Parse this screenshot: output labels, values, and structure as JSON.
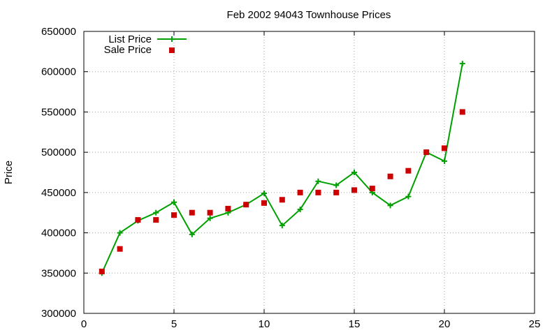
{
  "chart_data": {
    "type": "line",
    "title": "Feb 2002 94043 Townhouse Prices",
    "xlabel": "",
    "ylabel": "Price",
    "xlim": [
      0,
      25
    ],
    "ylim": [
      300000,
      650000
    ],
    "xticks": [
      0,
      5,
      10,
      15,
      20,
      25
    ],
    "yticks": [
      300000,
      350000,
      400000,
      450000,
      500000,
      550000,
      600000,
      650000
    ],
    "grid": true,
    "legend_position": "top-left",
    "series": [
      {
        "name": "List Price",
        "style": "line+cross",
        "color": "#00a000",
        "x": [
          1,
          2,
          3,
          4,
          5,
          6,
          7,
          8,
          9,
          10,
          11,
          12,
          13,
          14,
          15,
          16,
          17,
          18,
          19,
          20,
          21
        ],
        "y": [
          350000,
          400000,
          415000,
          425000,
          438000,
          398000,
          418000,
          425000,
          435000,
          449000,
          409000,
          429000,
          464000,
          459000,
          475000,
          450000,
          434000,
          445000,
          500000,
          489000,
          610000
        ]
      },
      {
        "name": "Sale Price",
        "style": "square",
        "color": "#cc0000",
        "x": [
          1,
          2,
          3,
          4,
          5,
          6,
          7,
          8,
          9,
          10,
          11,
          12,
          13,
          14,
          15,
          16,
          17,
          18,
          19,
          20,
          21
        ],
        "y": [
          352000,
          380000,
          416000,
          416000,
          422000,
          425000,
          425000,
          430000,
          435000,
          437000,
          441000,
          450000,
          450000,
          450000,
          453000,
          455000,
          470000,
          477000,
          500000,
          505000,
          550000
        ]
      }
    ]
  }
}
